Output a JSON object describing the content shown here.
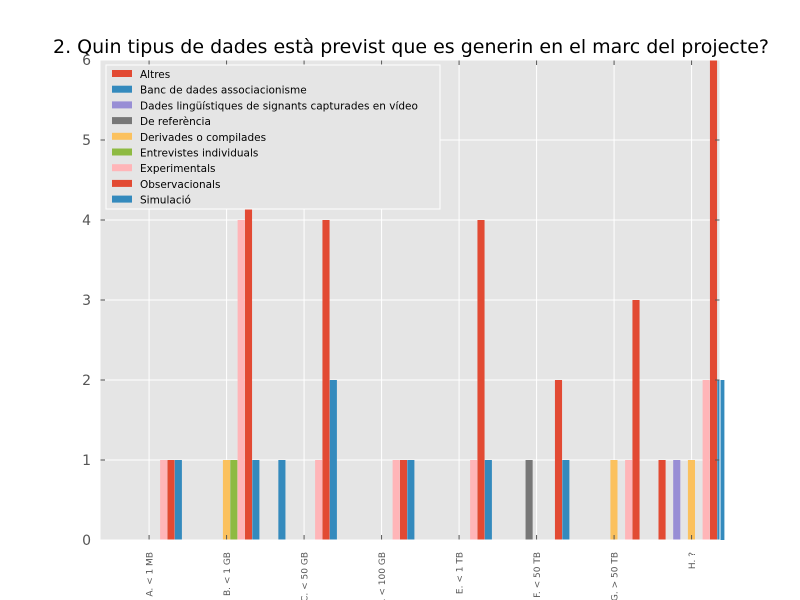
{
  "chart_data": {
    "type": "bar",
    "title": "2. Quin tipus de dades està previst que es generin en el marc del projecte?",
    "xlabel": "",
    "ylabel": "",
    "ylim": [
      0,
      6
    ],
    "yticks": [
      "0",
      "1",
      "2",
      "3",
      "4",
      "5",
      "6"
    ],
    "grid": true,
    "legend_position": "top-left",
    "categories": [
      "A. < 1 MB",
      "B. < 1 GB",
      "C. < 50 GB",
      "D. < 100 GB",
      "E. < 1 TB",
      "F. < 50 TB",
      "G. > 50 TB",
      "H. ?"
    ],
    "series": [
      {
        "name": "Altres",
        "color": "#E24A33",
        "values": [
          0,
          0,
          0,
          0,
          0,
          0,
          0,
          1
        ]
      },
      {
        "name": "Banc de dades associacionisme",
        "color": "#348ABD",
        "values": [
          0,
          0,
          1,
          0,
          0,
          0,
          0,
          0
        ]
      },
      {
        "name": "Dades lingüístiques de signants capturades en vídeo",
        "color": "#988ED5",
        "values": [
          0,
          0,
          0,
          0,
          0,
          0,
          0,
          1
        ]
      },
      {
        "name": "De referència",
        "color": "#777777",
        "values": [
          0,
          0,
          0,
          0,
          0,
          1,
          0,
          0
        ]
      },
      {
        "name": "Derivades o compilades",
        "color": "#FBC15E",
        "values": [
          0,
          1,
          0,
          0,
          0,
          0,
          1,
          1
        ]
      },
      {
        "name": "Entrevistes individuals",
        "color": "#8EBA42",
        "values": [
          0,
          1,
          0,
          0,
          0,
          0,
          0,
          0
        ]
      },
      {
        "name": "Experimentals",
        "color": "#FFB5B8",
        "values": [
          1,
          4,
          1,
          1,
          1,
          0,
          1,
          2
        ]
      },
      {
        "name": "Observacionals",
        "color": "#E24A33",
        "values": [
          1,
          5,
          4,
          1,
          4,
          2,
          3,
          6
        ]
      },
      {
        "name": "Simulació",
        "color": "#348ABD",
        "values": [
          1,
          1,
          2,
          1,
          1,
          1,
          0,
          2
        ]
      }
    ]
  }
}
